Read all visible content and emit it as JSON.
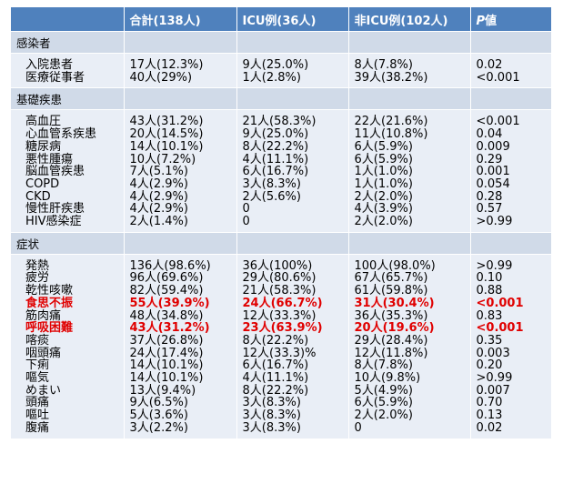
{
  "header": [
    "",
    "合計(138人)",
    "ICU例(36人)",
    "非ICU例(102人)",
    "P値"
  ],
  "sections": [
    {
      "title": "感染者",
      "rows": [
        {
          "label": "入院患者",
          "total": "17人(12.3%)",
          "icu": "9人(25.0%)",
          "nonicu": "8人(7.8%)",
          "p": "0.02",
          "highlight": false
        },
        {
          "label": "医療従事者",
          "total": "40人(29%)",
          "icu": "1人(2.8%)",
          "nonicu": "39人(38.2%)",
          "p": "<0.001",
          "highlight": false
        }
      ]
    },
    {
      "title": "基礎疾患",
      "rows": [
        {
          "label": "高血圧",
          "total": "43人(31.2%)",
          "icu": "21人(58.3%)",
          "nonicu": "22人(21.6%)",
          "p": "<0.001",
          "highlight": false
        },
        {
          "label": "心血管系疾患",
          "total": "20人(14.5%)",
          "icu": "9人(25.0%)",
          "nonicu": "11人(10.8%)",
          "p": "0.04",
          "highlight": false
        },
        {
          "label": "糖尿病",
          "total": "14人(10.1%)",
          "icu": "8人(22.2%)",
          "nonicu": "6人(5.9%)",
          "p": "0.009",
          "highlight": false
        },
        {
          "label": "悪性腫瘍",
          "total": "10人(7.2%)",
          "icu": "4人(11.1%)",
          "nonicu": "6人(5.9%)",
          "p": "0.29",
          "highlight": false
        },
        {
          "label": "脳血管疾患",
          "total": "7人(5.1%)",
          "icu": "6人(16.7%)",
          "nonicu": "1人(1.0%)",
          "p": "0.001",
          "highlight": false
        },
        {
          "label": "COPD",
          "total": "4人(2.9%)",
          "icu": "3人(8.3%)",
          "nonicu": "1人(1.0%)",
          "p": "0.054",
          "highlight": false
        },
        {
          "label": "CKD",
          "total": "4人(2.9%)",
          "icu": "2人(5.6%)",
          "nonicu": "2人(2.0%)",
          "p": "0.28",
          "highlight": false
        },
        {
          "label": "慢性肝疾患",
          "total": "4人(2.9%)",
          "icu": "0",
          "nonicu": "4人(3.9%)",
          "p": "0.57",
          "highlight": false
        },
        {
          "label": "HIV感染症",
          "total": "2人(1.4%)",
          "icu": "0",
          "nonicu": "2人(2.0%)",
          "p": ">0.99",
          "highlight": false
        }
      ]
    },
    {
      "title": "症状",
      "rows": [
        {
          "label": "発熱",
          "total": "136人(98.6%)",
          "icu": "36人(100%)",
          "nonicu": "100人(98.0%)",
          "p": ">0.99",
          "highlight": false
        },
        {
          "label": "疲労",
          "total": "96人(69.6%)",
          "icu": "29人(80.6%)",
          "nonicu": "67人(65.7%)",
          "p": "0.10",
          "highlight": false
        },
        {
          "label": "乾性咳嗽",
          "total": "82人(59.4%)",
          "icu": "21人(58.3%)",
          "nonicu": "61人(59.8%)",
          "p": "0.88",
          "highlight": false
        },
        {
          "label": "食思不振",
          "total": "55人(39.9%)",
          "icu": "24人(66.7%)",
          "nonicu": "31人(30.4%)",
          "p": "<0.001",
          "highlight": true
        },
        {
          "label": "筋肉痛",
          "total": "48人(34.8%)",
          "icu": "12人(33.3%)",
          "nonicu": "36人(35.3%)",
          "p": "0.83",
          "highlight": false
        },
        {
          "label": "呼吸困難",
          "total": "43人(31.2%)",
          "icu": "23人(63.9%)",
          "nonicu": "20人(19.6%)",
          "p": "<0.001",
          "highlight": true
        },
        {
          "label": "喀痰",
          "total": "37人(26.8%)",
          "icu": "8人(22.2%)",
          "nonicu": "29人(28.4%)",
          "p": "0.35",
          "highlight": false
        },
        {
          "label": "咽頭痛",
          "total": "24人(17.4%)",
          "icu": "12人(33.3)%",
          "nonicu": "12人(11.8%)",
          "p": "0.003",
          "highlight": false
        },
        {
          "label": "下痢",
          "total": "14人(10.1%)",
          "icu": "6人(16.7%)",
          "nonicu": "8人(7.8%)",
          "p": "0.20",
          "highlight": false
        },
        {
          "label": "嘔気",
          "total": "14人(10.1%)",
          "icu": "4人(11.1%)",
          "nonicu": "10人(9.8%)",
          "p": ">0.99",
          "highlight": false
        },
        {
          "label": "めまい",
          "total": "13人(9.4%)",
          "icu": "8人(22.2%)",
          "nonicu": "5人(4.9%)",
          "p": "0.007",
          "highlight": false
        },
        {
          "label": "頭痛",
          "total": "9人(6.5%)",
          "icu": "3人(8.3%)",
          "nonicu": "6人(5.9%)",
          "p": "0.70",
          "highlight": false
        },
        {
          "label": "嘔吐",
          "total": "5人(3.6%)",
          "icu": "3人(8.3%)",
          "nonicu": "2人(2.0%)",
          "p": "0.13",
          "highlight": false
        },
        {
          "label": "腹痛",
          "total": "3人(2.2%)",
          "icu": "3人(8.3%)",
          "nonicu": "0",
          "p": "0.02",
          "highlight": false
        }
      ]
    }
  ],
  "colors": {
    "header_bg": "#4f81bd",
    "section_bg": "#d0dae8",
    "block_bg": "#e9eef6",
    "highlight": "#e00000"
  }
}
